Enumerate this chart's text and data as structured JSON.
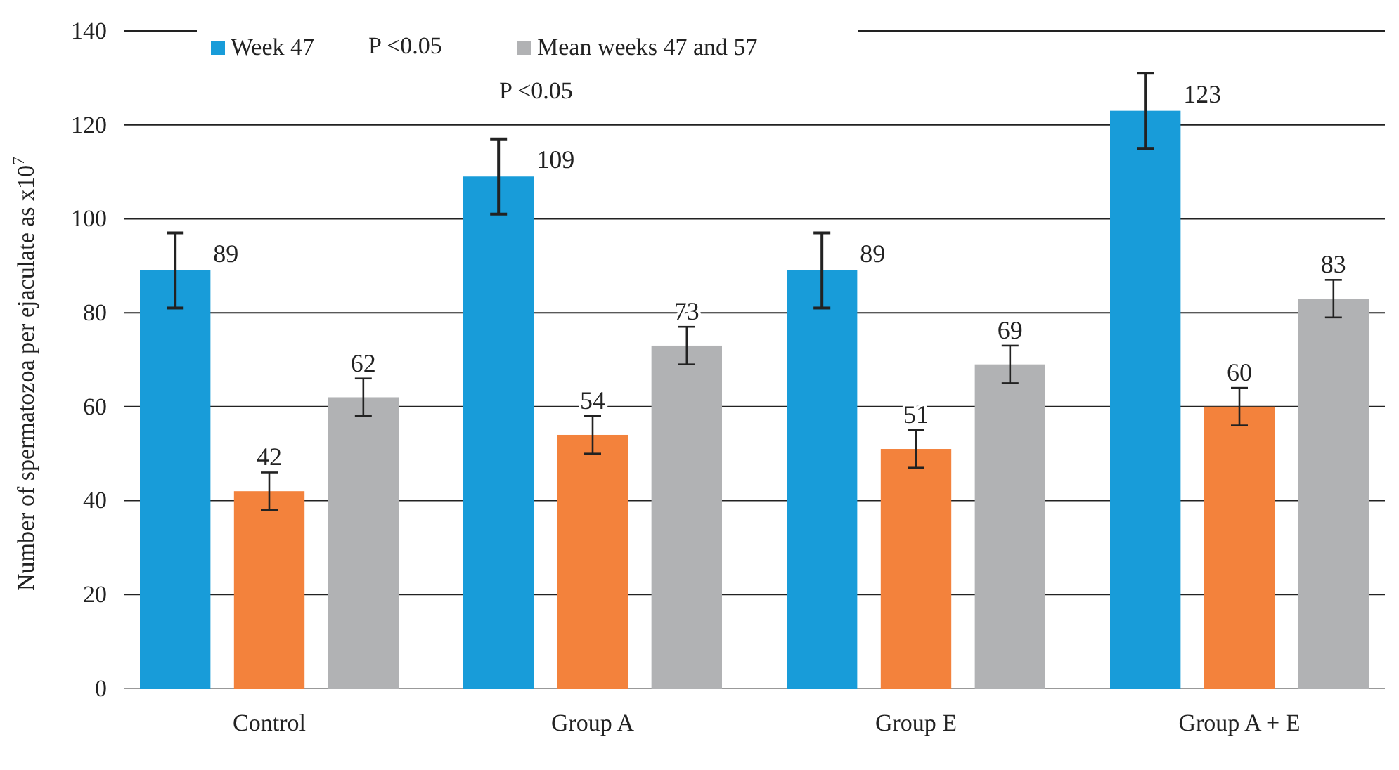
{
  "chart_data": {
    "type": "bar",
    "ylabel": "Number of spermatozoa per ejaculate as x10$^{7}$",
    "categories": [
      "Control",
      "Group  A",
      "Group E",
      "Group A + E"
    ],
    "series": [
      {
        "name": "Week 47",
        "color": "#189cd9",
        "values": [
          89,
          109,
          89,
          123
        ],
        "errors": [
          8,
          8,
          8,
          8
        ]
      },
      {
        "color": "#f3823c",
        "values": [
          42,
          54,
          51,
          60
        ],
        "errors": [
          4,
          4,
          4,
          4
        ]
      },
      {
        "name": "Mean weeks 47 and 57",
        "color": "#b1b2b4",
        "values": [
          62,
          73,
          69,
          83
        ],
        "errors": [
          4,
          4,
          4,
          4
        ]
      }
    ],
    "ylim": [
      0,
      140
    ],
    "yticks": [
      0,
      20,
      40,
      60,
      80,
      100,
      120,
      140
    ],
    "grid": "y",
    "legend": "top",
    "data_labels": true,
    "annotations": [
      "P <0.05",
      "P <0.05"
    ]
  }
}
